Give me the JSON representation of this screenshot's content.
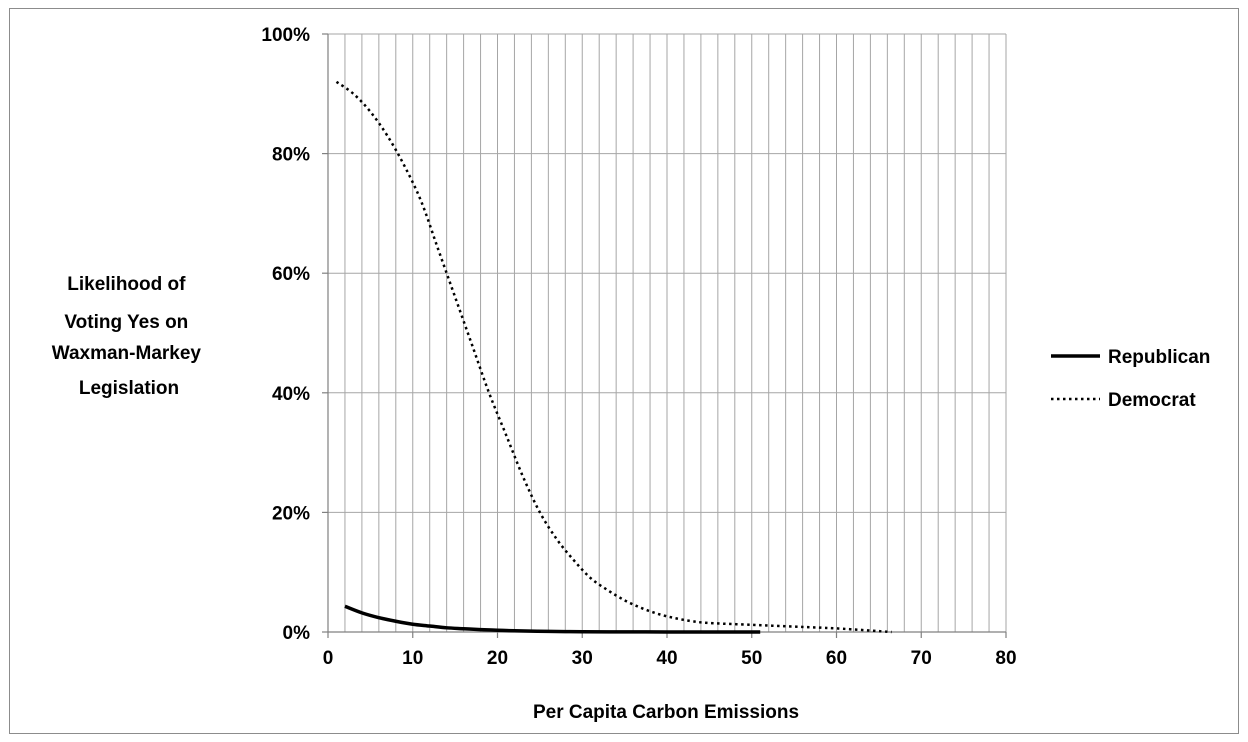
{
  "chart_data": {
    "type": "line",
    "title": "",
    "xlabel": "Per Capita Carbon Emissions",
    "ylabel_lines": [
      "Likelihood of",
      "Voting Yes on",
      "Waxman-Markey",
      "Legislation"
    ],
    "xlim": [
      0,
      80
    ],
    "ylim": [
      0,
      100
    ],
    "x_ticks": [
      0,
      10,
      20,
      30,
      40,
      50,
      60,
      70,
      80
    ],
    "x_tick_labels": [
      "0",
      "10",
      "20",
      "30",
      "40",
      "50",
      "60",
      "70",
      "80"
    ],
    "y_ticks": [
      0,
      20,
      40,
      60,
      80,
      100
    ],
    "y_tick_labels": [
      "0%",
      "20%",
      "40%",
      "60%",
      "80%",
      "100%"
    ],
    "x_minor_step": 2,
    "grid": true,
    "legend_position": "right",
    "series": [
      {
        "name": "Republican",
        "style": "solid",
        "color": "#000000",
        "x": [
          2,
          4,
          6,
          8,
          10,
          12,
          14,
          16,
          18,
          20,
          22,
          24,
          26,
          28,
          30,
          35,
          40,
          45,
          51
        ],
        "y": [
          4.3,
          3.2,
          2.4,
          1.8,
          1.3,
          1.0,
          0.7,
          0.55,
          0.4,
          0.3,
          0.2,
          0.15,
          0.1,
          0.07,
          0.05,
          0.02,
          0.01,
          0.0,
          0.0
        ]
      },
      {
        "name": "Democrat",
        "style": "dotted",
        "color": "#000000",
        "x": [
          1,
          3,
          5,
          7,
          9,
          11,
          13,
          15,
          17,
          19,
          21,
          23,
          25,
          27,
          29,
          31,
          33,
          35,
          37,
          39,
          41,
          43,
          45,
          50,
          55,
          60,
          66.5
        ],
        "y": [
          92,
          90,
          87,
          83,
          78,
          72,
          64,
          56,
          48,
          40,
          33,
          26,
          20,
          15.5,
          12,
          9,
          7,
          5.3,
          4,
          3,
          2.3,
          1.8,
          1.5,
          1.2,
          0.9,
          0.6,
          0
        ]
      }
    ]
  }
}
